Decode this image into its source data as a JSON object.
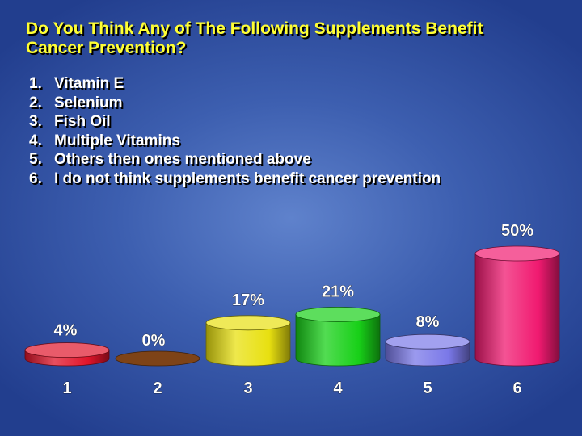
{
  "slide": {
    "title_line1": "Do You Think Any of The Following Supplements Benefit",
    "title_line2": "Cancer Prevention?",
    "options": [
      {
        "num": "1.",
        "text": "Vitamin E"
      },
      {
        "num": "2.",
        "text": "Selenium"
      },
      {
        "num": "3.",
        "text": "Fish Oil"
      },
      {
        "num": "4.",
        "text": "Multiple Vitamins"
      },
      {
        "num": "5.",
        "text": "Others then ones mentioned above"
      },
      {
        "num": "6.",
        "text": "I do not think supplements benefit cancer prevention"
      }
    ]
  },
  "chart_data": {
    "type": "bar",
    "categories": [
      "1",
      "2",
      "3",
      "4",
      "5",
      "6"
    ],
    "values": [
      4,
      0,
      17,
      21,
      8,
      50
    ],
    "value_labels": [
      "4%",
      "0%",
      "17%",
      "21%",
      "8%",
      "50%"
    ],
    "colors": [
      "#e0142a",
      "#8c4a1a",
      "#e8e010",
      "#18d018",
      "#7a78e8",
      "#f01a70"
    ],
    "ylim": [
      0,
      50
    ],
    "grid": false,
    "legend": "none"
  }
}
